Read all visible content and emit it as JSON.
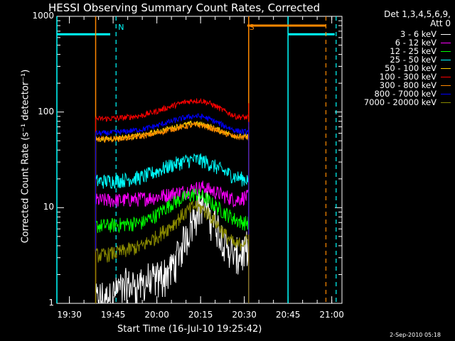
{
  "chart_data": {
    "type": "line",
    "title": "HESSI Observing Summary Count Rates, Corrected",
    "xlabel": "Start Time (16-Jul-10 19:25:42)",
    "ylabel": "Corrected Count Rate (s⁻¹ detector⁻¹)",
    "yscale": "log",
    "ylim": [
      1,
      1000
    ],
    "xlim": [
      "19:25:42",
      "21:03:30"
    ],
    "grid": false,
    "legend_position": "right, outside plot",
    "legend_header": [
      "Det 1,3,4,5,6,9,",
      "Att 0"
    ],
    "xticks": [
      "19:30",
      "19:45",
      "20:00",
      "20:15",
      "20:30",
      "20:45",
      "21:00"
    ],
    "yticks": [
      "1",
      "10",
      "100",
      "1000"
    ],
    "data_window": [
      "19:39:00",
      "20:31:30"
    ],
    "series": [
      {
        "name": "3 - 6 keV",
        "color": "#ffffff",
        "x": [
          "19:42",
          "19:48",
          "19:55",
          "20:00",
          "20:05",
          "20:08",
          "20:11",
          "20:13",
          "20:15",
          "20:18",
          "20:21",
          "20:24",
          "20:27",
          "20:30"
        ],
        "y": [
          1.1,
          1.5,
          1.6,
          1.8,
          2.3,
          3.5,
          6.0,
          9.0,
          11.0,
          9.0,
          6.0,
          4.0,
          3.0,
          3.5
        ]
      },
      {
        "name": "6 - 12 keV",
        "color": "#ff00ff",
        "x": [
          "19:42",
          "19:48",
          "19:55",
          "20:00",
          "20:05",
          "20:10",
          "20:13",
          "20:16",
          "20:19",
          "20:23",
          "20:27",
          "20:30"
        ],
        "y": [
          12,
          12,
          12.5,
          13,
          14,
          15,
          16,
          16.5,
          15,
          13.5,
          12,
          13
        ]
      },
      {
        "name": "12 - 25 keV",
        "color": "#00ff00",
        "x": [
          "19:42",
          "19:48",
          "19:55",
          "20:00",
          "20:05",
          "20:10",
          "20:13",
          "20:16",
          "20:19",
          "20:23",
          "20:27",
          "20:30"
        ],
        "y": [
          6.5,
          6.7,
          7,
          8.5,
          11,
          13,
          14,
          13,
          11,
          9,
          7.5,
          7
        ]
      },
      {
        "name": "25 - 50 keV",
        "color": "#00ffff",
        "x": [
          "19:42",
          "19:48",
          "19:55",
          "20:00",
          "20:05",
          "20:10",
          "20:13",
          "20:16",
          "20:19",
          "20:23",
          "20:27",
          "20:30"
        ],
        "y": [
          19,
          19.5,
          21,
          24,
          28,
          31,
          32,
          31,
          28,
          24,
          21,
          20
        ]
      },
      {
        "name": "50 - 100 keV",
        "color": "#ffd000",
        "x": [
          "19:42",
          "19:48",
          "19:55",
          "20:00",
          "20:05",
          "20:10",
          "20:13",
          "20:16",
          "20:19",
          "20:23",
          "20:27",
          "20:30"
        ],
        "y": [
          52,
          54,
          57,
          62,
          68,
          74,
          76,
          74,
          69,
          62,
          56,
          55
        ]
      },
      {
        "name": "100 - 300 keV",
        "color": "#ff0000",
        "x": [
          "19:42",
          "19:48",
          "19:55",
          "20:00",
          "20:05",
          "20:10",
          "20:13",
          "20:16",
          "20:19",
          "20:23",
          "20:27",
          "20:30"
        ],
        "y": [
          85,
          87,
          92,
          102,
          115,
          128,
          132,
          130,
          120,
          103,
          90,
          88
        ]
      },
      {
        "name": "300 - 800 keV",
        "color": "#ff8800",
        "x": [
          "19:42",
          "19:48",
          "19:55",
          "20:00",
          "20:05",
          "20:10",
          "20:13",
          "20:16",
          "20:19",
          "20:23",
          "20:27",
          "20:30"
        ],
        "y": [
          52,
          53,
          56,
          60,
          66,
          71,
          73,
          72,
          67,
          60,
          55,
          54
        ]
      },
      {
        "name": "800 - 7000 keV",
        "color": "#0000ff",
        "x": [
          "19:42",
          "19:48",
          "19:55",
          "20:00",
          "20:05",
          "20:10",
          "20:13",
          "20:16",
          "20:19",
          "20:23",
          "20:27",
          "20:30"
        ],
        "y": [
          60,
          62,
          66,
          72,
          80,
          88,
          91,
          89,
          82,
          72,
          64,
          62
        ]
      },
      {
        "name": "7000 - 20000 keV",
        "color": "#888800",
        "x": [
          "19:42",
          "19:48",
          "19:55",
          "20:00",
          "20:05",
          "20:08",
          "20:11",
          "20:13",
          "20:15",
          "20:18",
          "20:21",
          "20:24",
          "20:27",
          "20:30"
        ],
        "y": [
          3.2,
          3.5,
          4.0,
          5.0,
          6.5,
          8.0,
          9.5,
          10.5,
          10.0,
          8.5,
          6.5,
          5.0,
          4.0,
          4.5
        ]
      }
    ],
    "annotations": [
      {
        "text": "N",
        "x": "19:46:00",
        "color": "#00ffff"
      },
      {
        "text": "S",
        "x": "20:31:00",
        "color": "#ff8800"
      }
    ],
    "night_markers": {
      "color": "#00ffff",
      "value": 650,
      "solid_segments": [
        [
          "19:25:42",
          "19:44:00"
        ],
        [
          "20:45:00",
          "21:01:00"
        ]
      ],
      "vertical_solid": [
        "19:25:42",
        "20:45:00"
      ],
      "vertical_dashed": [
        "19:46:00",
        "21:01:30"
      ]
    },
    "saa_markers": {
      "color": "#ff8800",
      "value": 800,
      "solid_segments": [
        [
          "20:31:00",
          "20:58:00"
        ]
      ],
      "vertical_solid": [
        "19:39:00",
        "20:31:30"
      ],
      "vertical_dashed": [
        "20:58:00"
      ]
    }
  },
  "footer": "2-Sep-2010 05:18"
}
